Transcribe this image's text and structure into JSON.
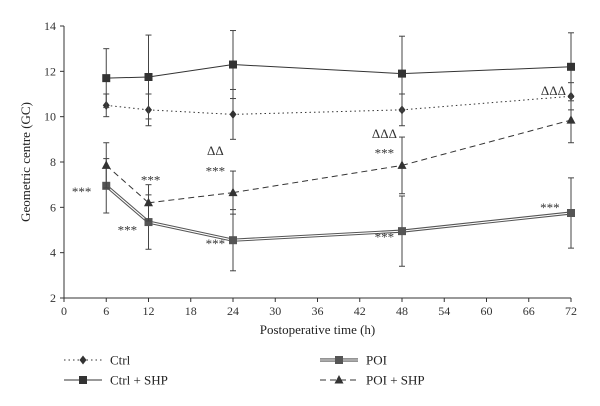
{
  "chart_data": {
    "type": "line",
    "xlabel": "Postoperative time (h)",
    "ylabel": "Geometric centre (GC)",
    "xlim": [
      0,
      72
    ],
    "ylim": [
      2,
      14
    ],
    "x_ticks": [
      0,
      6,
      12,
      18,
      24,
      30,
      36,
      42,
      48,
      54,
      60,
      66,
      72
    ],
    "y_ticks": [
      2,
      4,
      6,
      8,
      10,
      12,
      14
    ],
    "grid": false,
    "legend_position": "bottom",
    "series": [
      {
        "name": "Ctrl",
        "color": "#333333",
        "line_style": "dotted",
        "marker": "diamond",
        "x": [
          6,
          12,
          24,
          48,
          72
        ],
        "y": [
          10.5,
          10.3,
          10.1,
          10.3,
          10.9
        ],
        "err": [
          0.5,
          0.7,
          1.1,
          0.7,
          0.6
        ]
      },
      {
        "name": "Ctrl + SHP",
        "color": "#333333",
        "line_style": "solid",
        "marker": "square",
        "x": [
          6,
          12,
          24,
          48,
          72
        ],
        "y": [
          11.7,
          11.75,
          12.3,
          11.9,
          12.2
        ],
        "err": [
          1.3,
          1.85,
          1.5,
          1.65,
          1.5
        ]
      },
      {
        "name": "POI",
        "color": "#555555",
        "line_style": "double",
        "marker": "square",
        "x": [
          6,
          12,
          24,
          48,
          72
        ],
        "y": [
          6.95,
          5.35,
          4.55,
          4.95,
          5.75
        ],
        "err": [
          1.2,
          1.2,
          1.35,
          1.55,
          1.55
        ]
      },
      {
        "name": "POI + SHP",
        "color": "#333333",
        "line_style": "dashed",
        "marker": "triangle",
        "x": [
          6,
          12,
          24,
          48,
          72
        ],
        "y": [
          7.85,
          6.2,
          6.65,
          7.85,
          9.85
        ],
        "err": [
          1.0,
          0.8,
          0.95,
          1.25,
          1.0
        ]
      }
    ],
    "annotations": [
      {
        "text": "***",
        "x": 2.5,
        "y": 6.5
      },
      {
        "text": "***",
        "x": 12.3,
        "y": 7.0
      },
      {
        "text": "***",
        "x": 9.0,
        "y": 4.8
      },
      {
        "text": "ΔΔ",
        "x": 21.5,
        "y": 8.3
      },
      {
        "text": "***",
        "x": 21.5,
        "y": 7.4
      },
      {
        "text": "***",
        "x": 21.5,
        "y": 4.2
      },
      {
        "text": "ΔΔΔ",
        "x": 45.5,
        "y": 9.05
      },
      {
        "text": "***",
        "x": 45.5,
        "y": 8.2
      },
      {
        "text": "***",
        "x": 45.5,
        "y": 4.5
      },
      {
        "text": "ΔΔΔ",
        "x": 69.5,
        "y": 10.95
      },
      {
        "text": "***",
        "x": 69.0,
        "y": 5.8
      }
    ]
  }
}
